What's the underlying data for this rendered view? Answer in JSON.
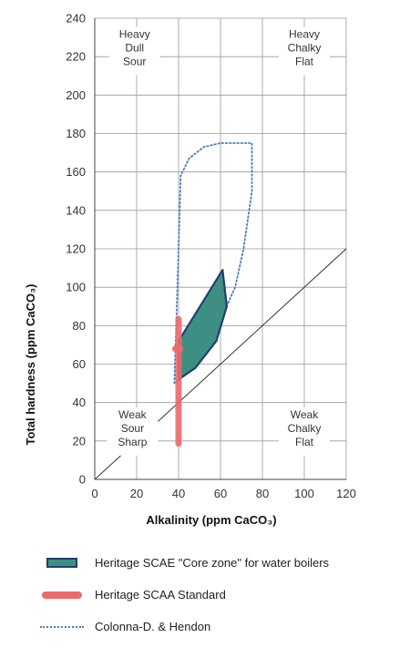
{
  "chart_data": {
    "type": "scatter",
    "xlabel": "Alkalinity (ppm CaCO₃)",
    "ylabel": "Total hardness (ppm CaCO₃)",
    "xlim": [
      0,
      120
    ],
    "ylim": [
      0,
      240
    ],
    "x_ticks": [
      "0",
      "20",
      "40",
      "60",
      "80",
      "100",
      "120"
    ],
    "y_ticks": [
      "0",
      "20",
      "40",
      "60",
      "80",
      "100",
      "120",
      "140",
      "160",
      "180",
      "200",
      "220",
      "240"
    ],
    "grid": true,
    "reference_line": {
      "from": [
        0,
        0
      ],
      "to": [
        120,
        120
      ],
      "style": "thin"
    },
    "zones": [
      {
        "lines": [
          "Heavy",
          "Dull",
          "Sour"
        ],
        "x": 19,
        "y": 222
      },
      {
        "lines": [
          "Heavy",
          "Chalky",
          "Flat"
        ],
        "x": 100,
        "y": 222
      },
      {
        "lines": [
          "Weak",
          "Sour",
          "Sharp"
        ],
        "x": 18,
        "y": 24
      },
      {
        "lines": [
          "Weak",
          "Chalky",
          "Flat"
        ],
        "x": 100,
        "y": 24
      }
    ],
    "series": [
      {
        "name": "Heritage SCAE \"Core zone\" for water boilers",
        "kind": "polygon",
        "color": "#3d8f84",
        "edge_color": "#1f3f72",
        "points": [
          [
            40,
            72
          ],
          [
            61,
            109
          ],
          [
            63,
            90
          ],
          [
            58,
            72
          ],
          [
            48,
            58
          ],
          [
            40,
            52
          ]
        ]
      },
      {
        "name": "Heritage SCAA Standard",
        "kind": "band",
        "color": "#ec6a6a",
        "x": 40,
        "y_range": [
          17,
          85
        ],
        "marker": [
          40,
          68
        ]
      },
      {
        "name": "Colonna-D. & Hendon",
        "kind": "dotted-outline",
        "color": "#4a7fc1",
        "points": [
          [
            38,
            50
          ],
          [
            40,
            120
          ],
          [
            41,
            158
          ],
          [
            45,
            167
          ],
          [
            52,
            173
          ],
          [
            60,
            175
          ],
          [
            67,
            175
          ],
          [
            75,
            175
          ],
          [
            75,
            150
          ],
          [
            71,
            120
          ],
          [
            67,
            100
          ],
          [
            62,
            88
          ],
          [
            57,
            78
          ],
          [
            52,
            68
          ],
          [
            46,
            60
          ],
          [
            40,
            52
          ],
          [
            38,
            50
          ]
        ]
      }
    ]
  },
  "legend": {
    "items": [
      {
        "label": "Heritage SCAE \"Core zone\" for water boilers"
      },
      {
        "label": "Heritage SCAA Standard"
      },
      {
        "label": "Colonna-D. & Hendon"
      }
    ]
  }
}
